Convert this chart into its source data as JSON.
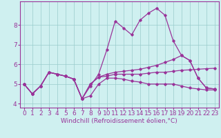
{
  "xlabel": "Windchill (Refroidissement éolien,°C)",
  "bg_color": "#cff0f0",
  "line_color": "#993399",
  "grid_color": "#99cccc",
  "lines": [
    [
      5.0,
      4.5,
      4.9,
      5.6,
      5.5,
      5.4,
      5.25,
      4.25,
      4.4,
      5.0,
      5.3,
      5.3,
      5.25,
      5.15,
      5.1,
      5.0,
      5.0,
      5.0,
      5.0,
      4.9,
      4.8,
      4.75,
      4.7,
      4.7
    ],
    [
      5.0,
      4.5,
      4.9,
      5.6,
      5.5,
      5.4,
      5.25,
      4.25,
      4.9,
      5.5,
      6.75,
      8.2,
      7.85,
      7.5,
      8.25,
      8.6,
      8.85,
      8.5,
      7.2,
      6.45,
      6.2,
      5.3,
      4.8,
      4.75
    ],
    [
      5.0,
      4.5,
      4.9,
      5.6,
      5.5,
      5.4,
      5.25,
      4.25,
      5.0,
      5.35,
      5.4,
      5.5,
      5.5,
      5.5,
      5.5,
      5.55,
      5.6,
      5.6,
      5.65,
      5.7,
      5.72,
      5.75,
      5.78,
      5.8
    ],
    [
      5.0,
      4.5,
      4.9,
      5.6,
      5.5,
      5.4,
      5.25,
      4.25,
      5.0,
      5.35,
      5.5,
      5.6,
      5.65,
      5.7,
      5.75,
      5.85,
      5.95,
      6.1,
      6.25,
      6.45,
      6.2,
      5.3,
      4.8,
      4.75
    ]
  ],
  "x": [
    0,
    1,
    2,
    3,
    4,
    5,
    6,
    7,
    8,
    9,
    10,
    11,
    12,
    13,
    14,
    15,
    16,
    17,
    18,
    19,
    20,
    21,
    22,
    23
  ],
  "ylim": [
    3.8,
    9.2
  ],
  "yticks": [
    4,
    5,
    6,
    7,
    8
  ],
  "xticks": [
    0,
    1,
    2,
    3,
    4,
    5,
    6,
    7,
    8,
    9,
    10,
    11,
    12,
    13,
    14,
    15,
    16,
    17,
    18,
    19,
    20,
    21,
    22,
    23
  ],
  "marker": "D",
  "markersize": 1.8,
  "linewidth": 0.9,
  "fontsize_xlabel": 6.5,
  "fontsize_tick": 6.5
}
